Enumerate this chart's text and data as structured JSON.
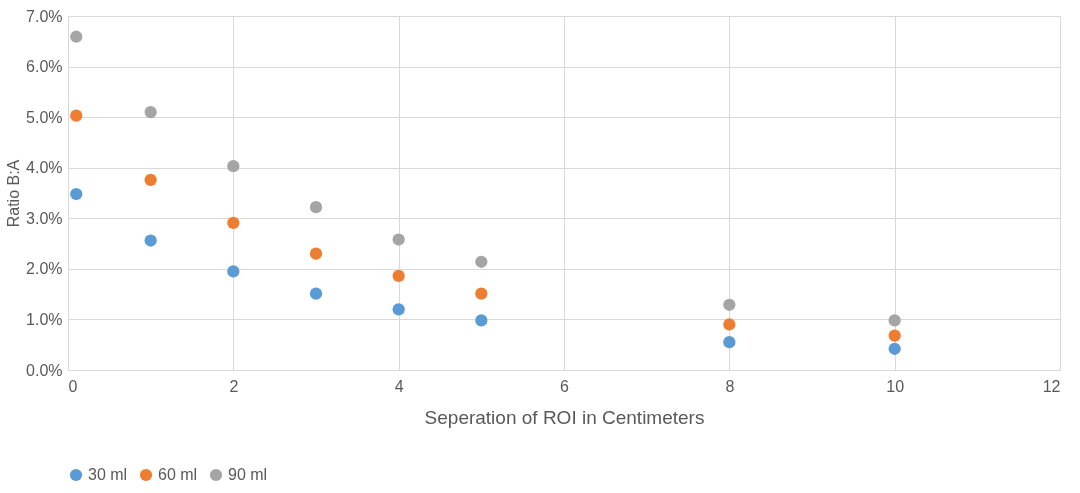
{
  "chart_data": {
    "type": "scatter",
    "xlabel": "Seperation of ROI in Centimeters",
    "ylabel": "Ratio B:A",
    "x": [
      0.1,
      1,
      2,
      3,
      4,
      5,
      8,
      10
    ],
    "series": [
      {
        "name": "30 ml",
        "color": "#5b9bd5",
        "values": [
          3.48,
          2.56,
          1.95,
          1.51,
          1.2,
          0.98,
          0.55,
          0.42
        ]
      },
      {
        "name": "60 ml",
        "color": "#ed7d31",
        "values": [
          5.03,
          3.76,
          2.91,
          2.3,
          1.86,
          1.51,
          0.9,
          0.68
        ]
      },
      {
        "name": "90 ml",
        "color": "#a5a5a5",
        "values": [
          6.59,
          5.1,
          4.03,
          3.22,
          2.58,
          2.14,
          1.29,
          0.98
        ]
      }
    ],
    "xlim": [
      0,
      12
    ],
    "xticks": [
      0,
      2,
      4,
      6,
      8,
      10,
      12
    ],
    "ylim": [
      0,
      7
    ],
    "yticks": [
      {
        "value": 0,
        "label": "0.0%"
      },
      {
        "value": 1,
        "label": "1.0%"
      },
      {
        "value": 2,
        "label": "2.0%"
      },
      {
        "value": 3,
        "label": "3.0%"
      },
      {
        "value": 4,
        "label": "4.0%"
      },
      {
        "value": 5,
        "label": "5.0%"
      },
      {
        "value": 6,
        "label": "6.0%"
      },
      {
        "value": 7,
        "label": "7.0%"
      }
    ],
    "grid": true,
    "legend": "bottom",
    "marker": "circle"
  }
}
